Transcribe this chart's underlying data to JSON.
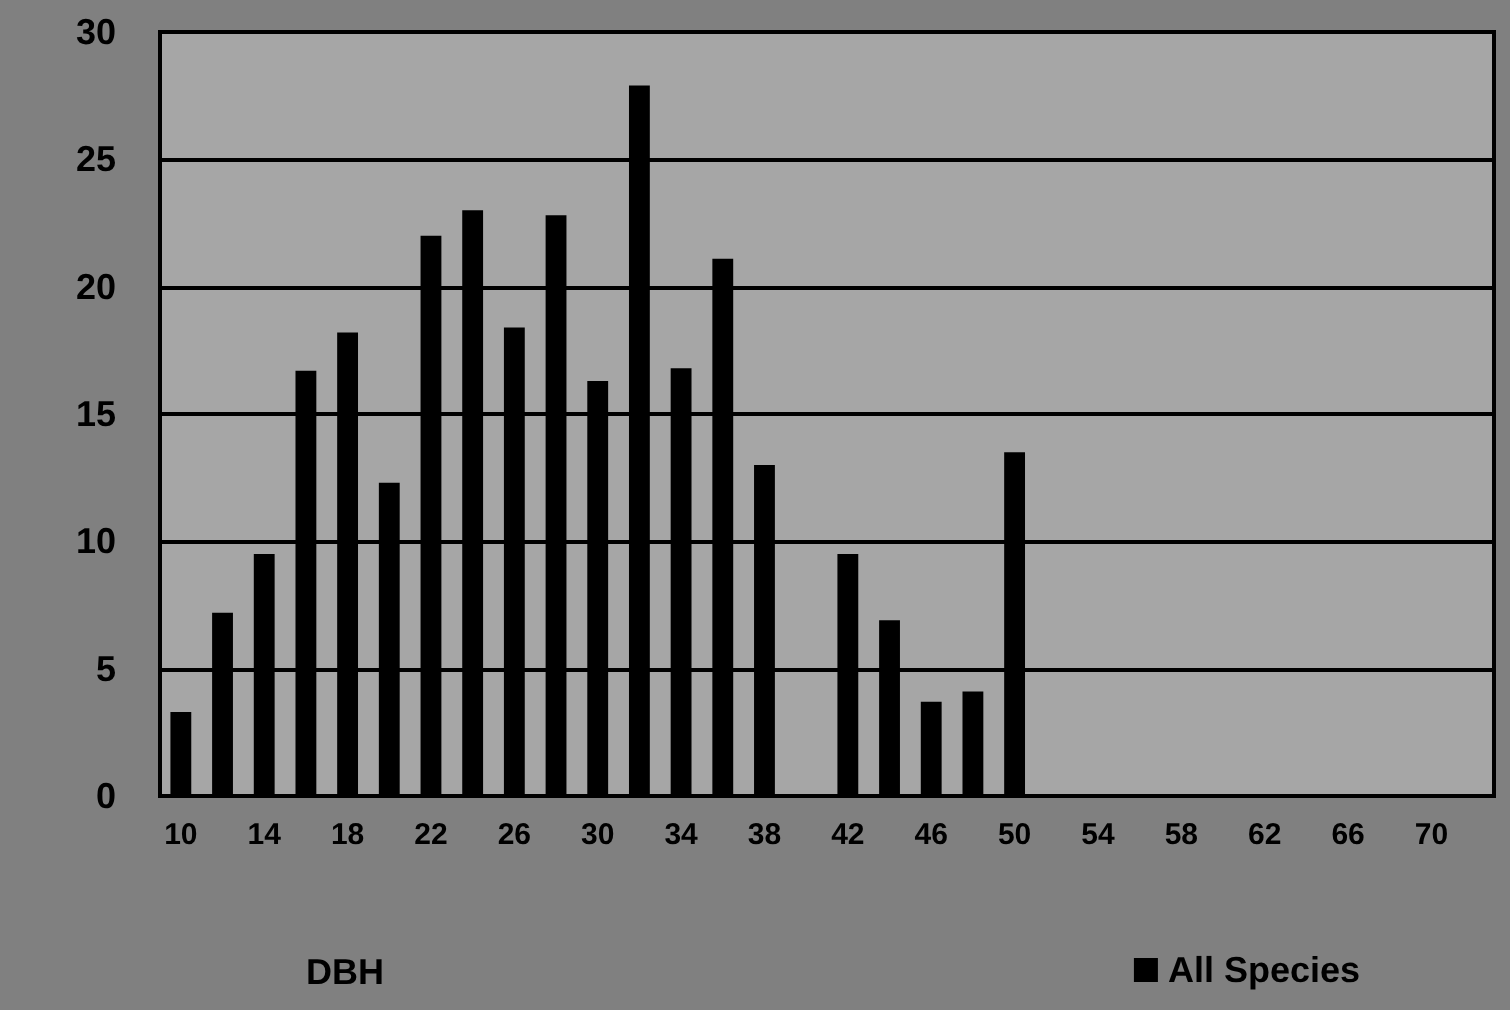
{
  "chart_data": {
    "type": "bar",
    "xlabel": "DBH",
    "categories": [
      "10",
      null,
      "14",
      null,
      "18",
      null,
      "22",
      null,
      "26",
      null,
      "30",
      null,
      "34",
      null,
      "38",
      null,
      "42",
      null,
      "46",
      null,
      "50",
      null,
      "54",
      null,
      "58",
      null,
      "62",
      null,
      "66",
      null,
      "70",
      null
    ],
    "series": [
      {
        "name": "All Species",
        "color": "#000000",
        "values": [
          3.3,
          7.2,
          9.5,
          16.7,
          18.2,
          12.3,
          22.0,
          23.0,
          18.4,
          22.8,
          16.3,
          27.9,
          16.8,
          21.1,
          13.0,
          null,
          9.5,
          6.9,
          3.7,
          4.1,
          13.5,
          null,
          null,
          null,
          null,
          null,
          null,
          null,
          null,
          null,
          null,
          null
        ]
      }
    ],
    "ylim": [
      0,
      30
    ],
    "yticks": [
      0,
      5,
      10,
      15,
      20,
      25,
      30
    ],
    "grid": "y",
    "legend": "bottom right"
  }
}
